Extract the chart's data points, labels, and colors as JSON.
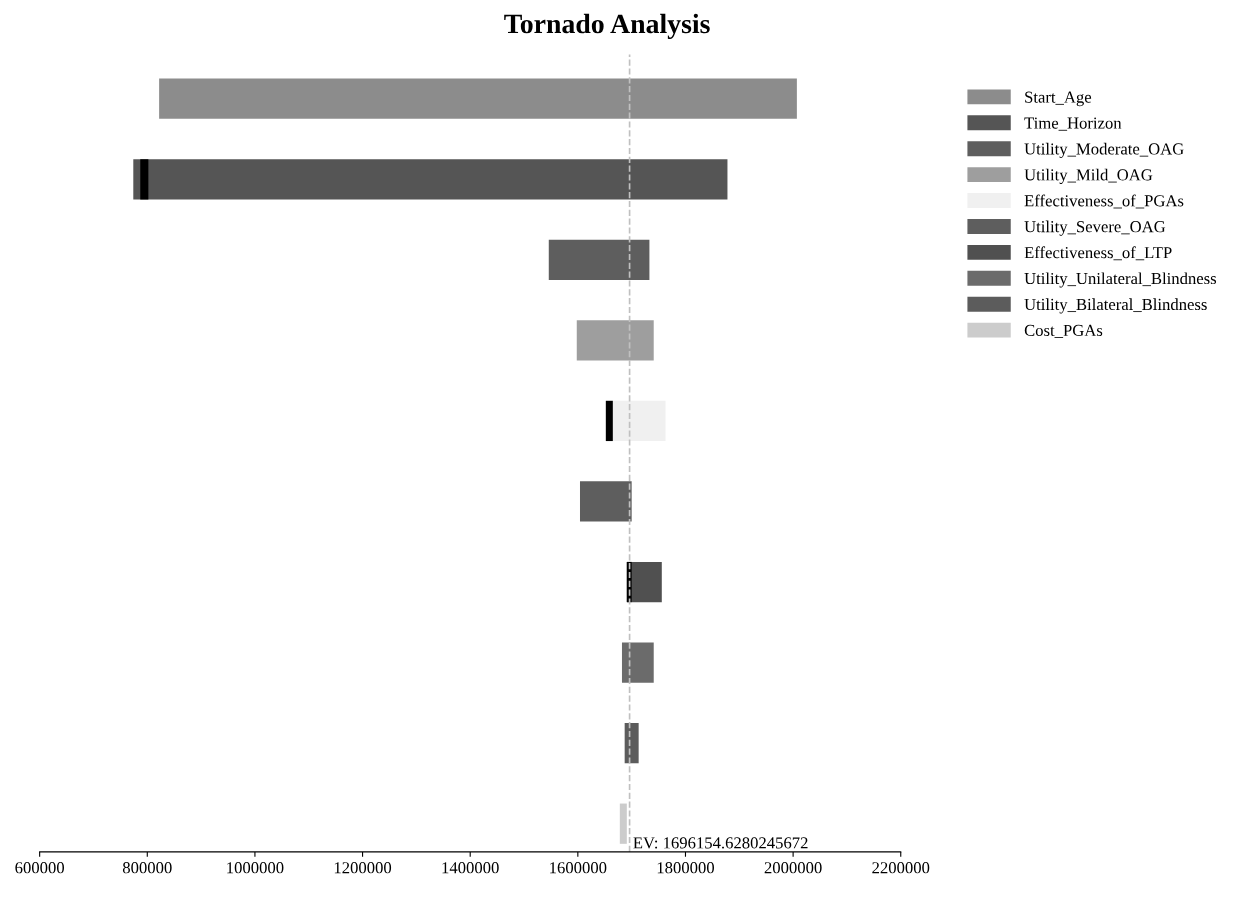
{
  "chart_data": {
    "type": "bar",
    "title": "Tornado Analysis",
    "orientation": "horizontal",
    "categories": [
      null,
      null,
      null,
      null,
      null,
      null,
      null,
      null,
      null,
      null
    ],
    "series": [
      {
        "name": "Start_Age",
        "color": "#8c8c8c",
        "values": [
          1185000,
          null,
          null,
          null,
          null,
          null,
          null,
          null,
          null,
          null
        ],
        "base": [
          822000,
          null,
          null,
          null,
          null,
          null,
          null,
          null,
          null,
          null
        ]
      },
      {
        "name": "Time_Horizon",
        "color": "#555555",
        "values": [
          null,
          1104000,
          null,
          null,
          null,
          null,
          null,
          null,
          null,
          null
        ],
        "base": [
          null,
          774000,
          null,
          null,
          null,
          null,
          null,
          null,
          null,
          null
        ]
      },
      {
        "name": "Utility_Moderate_OAG",
        "color": "#5e5e5e",
        "values": [
          null,
          null,
          187000,
          null,
          null,
          null,
          null,
          null,
          null,
          null
        ],
        "base": [
          null,
          null,
          1546000,
          null,
          null,
          null,
          null,
          null,
          null,
          null
        ]
      },
      {
        "name": "Utility_Mild_OAG",
        "color": "#9e9e9e",
        "values": [
          null,
          null,
          null,
          143000,
          null,
          null,
          null,
          null,
          null,
          null
        ],
        "base": [
          null,
          null,
          null,
          1598000,
          null,
          null,
          null,
          null,
          null,
          null
        ]
      },
      {
        "name": "Effectiveness_of_PGAs",
        "color": "#f0f0f0",
        "values": [
          null,
          null,
          null,
          null,
          111000,
          null,
          null,
          null,
          null,
          null
        ],
        "base": [
          null,
          null,
          null,
          null,
          1652000,
          null,
          null,
          null,
          null,
          null
        ]
      },
      {
        "name": "Utility_Severe_OAG",
        "color": "#5e5e5e",
        "values": [
          null,
          null,
          null,
          null,
          null,
          96000,
          null,
          null,
          null,
          null
        ],
        "base": [
          null,
          null,
          null,
          null,
          null,
          1604000,
          null,
          null,
          null,
          null
        ]
      },
      {
        "name": "Effectiveness_of_LTP",
        "color": "#505050",
        "values": [
          null,
          null,
          null,
          null,
          null,
          null,
          65000,
          null,
          null,
          null
        ],
        "base": [
          null,
          null,
          null,
          null,
          null,
          null,
          1691000,
          null,
          null,
          null
        ]
      },
      {
        "name": "Utility_Unilateral_Blindness",
        "color": "#6b6b6b",
        "values": [
          null,
          null,
          null,
          null,
          null,
          null,
          null,
          59000,
          null,
          null
        ],
        "base": [
          null,
          null,
          null,
          null,
          null,
          null,
          null,
          1682000,
          null,
          null
        ]
      },
      {
        "name": "Utility_Bilateral_Blindness",
        "color": "#5c5c5c",
        "values": [
          null,
          null,
          null,
          null,
          null,
          null,
          null,
          null,
          26000,
          null
        ],
        "base": [
          null,
          null,
          null,
          null,
          null,
          null,
          null,
          null,
          1687000,
          null
        ]
      },
      {
        "name": "Cost_PGAs",
        "color": "#cccccc",
        "values": [
          null,
          null,
          null,
          null,
          null,
          null,
          null,
          null,
          null,
          13000
        ],
        "base": [
          null,
          null,
          null,
          null,
          null,
          null,
          null,
          null,
          null,
          1678000
        ]
      },
      {
        "color": "#000000",
        "values": [
          null,
          15000,
          null,
          null,
          13000,
          null,
          9000,
          null,
          null,
          null
        ],
        "base": [
          null,
          787000,
          null,
          null,
          1652000,
          null,
          1691000,
          null,
          null,
          null
        ]
      }
    ],
    "xlim": [
      600000,
      2200000
    ],
    "xticks": [
      600000,
      800000,
      1000000,
      1200000,
      1400000,
      1600000,
      1800000,
      2000000,
      2200000
    ],
    "ref_lines": [
      {
        "axis": "x",
        "value": 1696154.6280245672,
        "label": "EV: 1696154.6280245672",
        "color": "#c0c0c0",
        "line_style": "dashed"
      }
    ],
    "tick_labels": "x",
    "grid": false,
    "legend": "right"
  }
}
